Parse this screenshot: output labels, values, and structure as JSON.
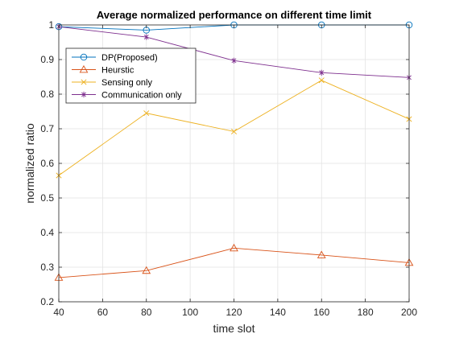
{
  "chart_data": {
    "type": "line",
    "title": "Average normalized performance on different time limit",
    "xlabel": "time slot",
    "ylabel": "normalized ratio",
    "xlim": [
      40,
      200
    ],
    "ylim": [
      0.2,
      1.0
    ],
    "xticks": [
      40,
      60,
      80,
      100,
      120,
      140,
      160,
      180,
      200
    ],
    "yticks": [
      0.2,
      0.3,
      0.4,
      0.5,
      0.6,
      0.7,
      0.8,
      0.9,
      1.0
    ],
    "xtick_labels": [
      "40",
      "60",
      "80",
      "100",
      "120",
      "140",
      "160",
      "180",
      "200"
    ],
    "ytick_labels": [
      "0.2",
      "0.3",
      "0.4",
      "0.5",
      "0.6",
      "0.7",
      "0.8",
      "0.9",
      "1"
    ],
    "grid": true,
    "legend_position": "top-left",
    "x": [
      40,
      80,
      120,
      160,
      200
    ],
    "series": [
      {
        "name": "DP(Proposed)",
        "values": [
          0.995,
          0.985,
          1.0,
          1.0,
          1.0
        ],
        "color": "#0072BD",
        "marker": "circle"
      },
      {
        "name": "Heurstic",
        "values": [
          0.27,
          0.29,
          0.355,
          0.335,
          0.313
        ],
        "color": "#D95319",
        "marker": "triangle"
      },
      {
        "name": "Sensing only",
        "values": [
          0.565,
          0.745,
          0.692,
          0.84,
          0.728
        ],
        "color": "#EDB120",
        "marker": "x"
      },
      {
        "name": "Communication only",
        "values": [
          0.995,
          0.965,
          0.897,
          0.862,
          0.848
        ],
        "color": "#7E2F8E",
        "marker": "asterisk"
      }
    ]
  }
}
